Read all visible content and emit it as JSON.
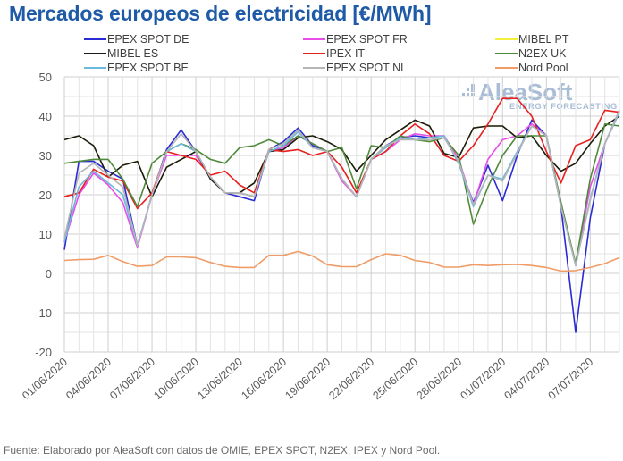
{
  "title": "Mercados europeos de electricidad [€/MWh]",
  "footer": "Fuente: Elaborado por AleaSoft con datos de OMIE, EPEX SPOT, N2EX, IPEX y Nord Pool.",
  "watermark": {
    "brand": "AleaSoft",
    "tagline": "ENERGY FORECASTING"
  },
  "chart_data": {
    "type": "line",
    "title": "Mercados europeos de electricidad [€/MWh]",
    "xlabel": "",
    "ylabel": "€/MWh",
    "ylim": [
      -20,
      50
    ],
    "yticks": [
      -20,
      -10,
      0,
      10,
      20,
      30,
      40,
      50
    ],
    "grid": true,
    "legend_position": "top",
    "x": [
      "01/06/2020",
      "02/06/2020",
      "03/06/2020",
      "04/06/2020",
      "05/06/2020",
      "06/06/2020",
      "07/06/2020",
      "08/06/2020",
      "09/06/2020",
      "10/06/2020",
      "11/06/2020",
      "12/06/2020",
      "13/06/2020",
      "14/06/2020",
      "15/06/2020",
      "16/06/2020",
      "17/06/2020",
      "18/06/2020",
      "19/06/2020",
      "20/06/2020",
      "21/06/2020",
      "22/06/2020",
      "23/06/2020",
      "24/06/2020",
      "25/06/2020",
      "26/06/2020",
      "27/06/2020",
      "28/06/2020",
      "29/06/2020",
      "30/06/2020",
      "01/07/2020",
      "02/07/2020",
      "03/07/2020",
      "04/07/2020",
      "05/07/2020",
      "06/07/2020",
      "07/07/2020",
      "08/07/2020",
      "09/07/2020"
    ],
    "xtick_labels": [
      "01/06/2020",
      "04/06/2020",
      "07/06/2020",
      "10/06/2020",
      "13/06/2020",
      "16/06/2020",
      "19/06/2020",
      "22/06/2020",
      "25/06/2020",
      "28/06/2020",
      "01/07/2020",
      "04/07/2020",
      "07/07/2020"
    ],
    "series": [
      {
        "name": "EPEX SPOT DE",
        "color": "#2b2bd6",
        "values": [
          6,
          28.5,
          28.5,
          26,
          24,
          7,
          20,
          31.5,
          36.5,
          31,
          24,
          20.5,
          19.5,
          18.5,
          31.5,
          33.5,
          37,
          32.5,
          31,
          24,
          19.5,
          29,
          32.5,
          34.5,
          35,
          34.5,
          35,
          28,
          18,
          27.5,
          18.5,
          30,
          39,
          35,
          17,
          -15,
          14,
          33,
          41.5
        ]
      },
      {
        "name": "EPEX SPOT FR",
        "color": "#e84de8",
        "values": [
          8,
          20,
          25.5,
          22.5,
          18,
          6.5,
          20,
          30,
          30,
          30,
          24.5,
          20.5,
          20.5,
          19.5,
          31,
          32,
          35,
          33,
          31,
          23.5,
          19.5,
          29,
          31,
          34,
          35.5,
          35,
          35,
          29,
          17.5,
          29,
          34,
          35,
          38,
          35,
          18,
          2,
          22,
          33,
          41
        ]
      },
      {
        "name": "MIBEL PT",
        "color": "#f2f03a",
        "values": [
          34,
          35,
          32.5,
          24.5,
          27.5,
          28.5,
          19.5,
          27,
          29,
          31,
          24,
          20.5,
          20.5,
          23,
          31,
          31.5,
          34.5,
          35,
          33.5,
          31.5,
          26,
          30,
          34,
          36.5,
          39,
          37.5,
          30.5,
          29.5,
          37,
          37.5,
          37.5,
          34.5,
          35,
          30,
          26,
          28,
          33,
          37.5,
          40
        ]
      },
      {
        "name": "MIBEL ES",
        "color": "#1a1a1a",
        "values": [
          34,
          35,
          32.5,
          24.5,
          27.5,
          28.5,
          19.5,
          27,
          29,
          31,
          24,
          20.5,
          20.5,
          23,
          31,
          31.5,
          34.5,
          35,
          33.5,
          31.5,
          26,
          30,
          34,
          36.5,
          39,
          37.5,
          30.5,
          29.5,
          37,
          37.5,
          37.5,
          34.5,
          35,
          30,
          26,
          28,
          33,
          37.5,
          40
        ]
      },
      {
        "name": "IPEX IT",
        "color": "#e8201e",
        "values": [
          19.5,
          20.5,
          26.5,
          24.5,
          23.5,
          16.5,
          20.5,
          31,
          30,
          29,
          25,
          26,
          22.5,
          20.5,
          31.5,
          31,
          31.5,
          30,
          31,
          27,
          20.5,
          29,
          31,
          35,
          38,
          35.5,
          30,
          28.5,
          32.5,
          38,
          44.5,
          44.5,
          40,
          31,
          23,
          32.5,
          34,
          41.5,
          41
        ]
      },
      {
        "name": "N2EX UK",
        "color": "#4f8a3a",
        "values": [
          28,
          28.5,
          29,
          29,
          24,
          17,
          28,
          31,
          33,
          31.5,
          29,
          28,
          32,
          32.5,
          34,
          32.5,
          35,
          33,
          31,
          32,
          21.5,
          32.5,
          32,
          35,
          34,
          33.5,
          34.5,
          30,
          12.5,
          22,
          30,
          35,
          35,
          35,
          18,
          2.5,
          24,
          38,
          37.5
        ]
      },
      {
        "name": "EPEX SPOT BE",
        "color": "#6bb9dc",
        "values": [
          8,
          22,
          26,
          23,
          20,
          7,
          20,
          31,
          33,
          31,
          24.5,
          20.5,
          20.5,
          19.5,
          31,
          32.5,
          36,
          32,
          31,
          24,
          19.5,
          29,
          32,
          34.5,
          34,
          34.5,
          35,
          28,
          17,
          25,
          24,
          31,
          37.5,
          35,
          17,
          2,
          19,
          33,
          41
        ]
      },
      {
        "name": "EPEX SPOT NL",
        "color": "#b5b5b5",
        "values": [
          9,
          25.5,
          28,
          25,
          22,
          7,
          20,
          31,
          35.5,
          31,
          24.5,
          20.5,
          20.5,
          19.5,
          31.5,
          33,
          36.5,
          32,
          31,
          24,
          19.5,
          29,
          32.5,
          34,
          34,
          34,
          34.5,
          28.5,
          17.5,
          25,
          23.5,
          30.5,
          37.5,
          35,
          17,
          2,
          18.5,
          33,
          41.5
        ]
      },
      {
        "name": "Nord Pool",
        "color": "#ef9c67",
        "values": [
          3.3,
          3.5,
          3.6,
          4.6,
          3.0,
          1.8,
          2.0,
          4.2,
          4.2,
          4.0,
          2.8,
          1.8,
          1.5,
          1.5,
          4.6,
          4.6,
          5.6,
          4.4,
          2.2,
          1.7,
          1.7,
          3.5,
          5.0,
          4.6,
          3.3,
          2.8,
          1.6,
          1.6,
          2.2,
          2.0,
          2.2,
          2.3,
          2.0,
          1.5,
          0.6,
          0.7,
          1.5,
          2.5,
          4.0
        ]
      }
    ]
  }
}
